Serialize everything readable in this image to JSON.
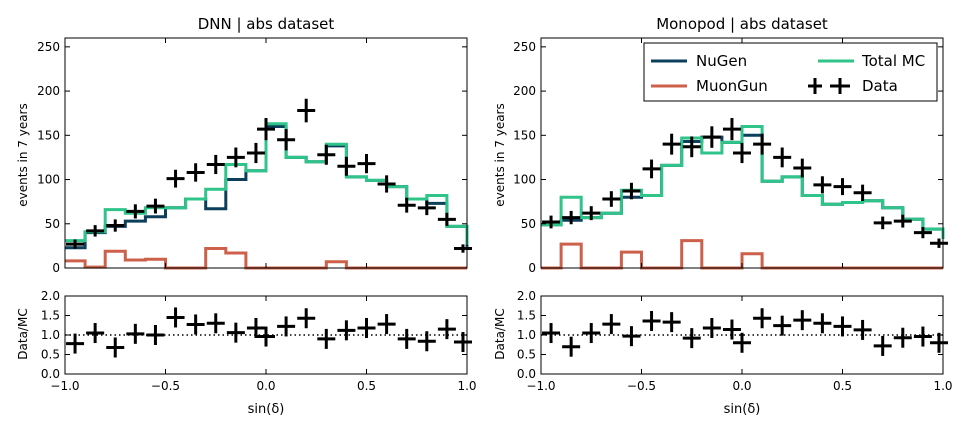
{
  "colors": {
    "nugen": "#0b3f5c",
    "muongun": "#cc604a",
    "total_mc": "#2fc489",
    "data": "#000000",
    "frame": "#000000"
  },
  "legend": {
    "nugen": "NuGen",
    "muongun": "MuonGun",
    "total_mc": "Total MC",
    "data": "Data"
  },
  "chart_data": [
    {
      "type": "line",
      "title": "DNN | abs dataset",
      "ylabel": "events in 7 years",
      "xlim": [
        -1.0,
        1.0
      ],
      "ylim": [
        0,
        260
      ],
      "yticks": [
        0,
        50,
        100,
        150,
        200,
        250
      ],
      "xticks": [
        -1.0,
        -0.5,
        0.0,
        0.5,
        1.0
      ],
      "ytick_labels": [
        "0",
        "50",
        "100",
        "150",
        "200",
        "250"
      ],
      "bin_edges": [
        -1.0,
        -0.9,
        -0.8,
        -0.7,
        -0.6,
        -0.5,
        -0.4,
        -0.3,
        -0.2,
        -0.1,
        0.0,
        0.1,
        0.2,
        0.3,
        0.4,
        0.5,
        0.6,
        0.7,
        0.8,
        0.9,
        1.0
      ],
      "series": [
        {
          "name": "NuGen",
          "values": [
            23,
            40,
            47,
            53,
            58,
            68,
            78,
            67,
            100,
            110,
            160,
            125,
            120,
            138,
            103,
            99,
            92,
            78,
            73,
            47,
            24
          ]
        },
        {
          "name": "MuonGun",
          "values": [
            8,
            1,
            19,
            9,
            10,
            0,
            0,
            22,
            17,
            0,
            0,
            0,
            0,
            7,
            0,
            0,
            0,
            0,
            0,
            0,
            0
          ]
        },
        {
          "name": "Total MC",
          "values": [
            31,
            41,
            66,
            62,
            68,
            68,
            78,
            89,
            117,
            110,
            163,
            125,
            120,
            140,
            103,
            99,
            92,
            78,
            82,
            47,
            26
          ]
        },
        {
          "name": "Data",
          "x": [
            -0.95,
            -0.85,
            -0.75,
            -0.65,
            -0.55,
            -0.45,
            -0.35,
            -0.25,
            -0.15,
            -0.05,
            0.0,
            0.1,
            0.2,
            0.3,
            0.4,
            0.5,
            0.6,
            0.7,
            0.8,
            0.9,
            0.98
          ],
          "values": [
            27,
            42,
            48,
            64,
            70,
            101,
            108,
            117,
            125,
            130,
            157,
            145,
            178,
            128,
            115,
            118,
            95,
            71,
            68,
            55,
            22
          ]
        }
      ],
      "ratio": {
        "ylabel": "Data/MC",
        "ylim": [
          0.0,
          2.0
        ],
        "yticks_labels": [
          "0.0",
          "0.5",
          "1.0",
          "1.5",
          "2.0"
        ],
        "x": [
          -0.95,
          -0.85,
          -0.75,
          -0.65,
          -0.55,
          -0.45,
          -0.35,
          -0.25,
          -0.15,
          -0.05,
          0.0,
          0.1,
          0.2,
          0.3,
          0.4,
          0.5,
          0.6,
          0.7,
          0.8,
          0.9,
          0.98
        ],
        "values": [
          0.78,
          1.05,
          0.68,
          1.03,
          1.0,
          1.45,
          1.27,
          1.3,
          1.06,
          1.18,
          0.96,
          1.22,
          1.43,
          0.9,
          1.12,
          1.18,
          1.28,
          0.9,
          0.84,
          1.15,
          0.82
        ]
      }
    },
    {
      "type": "line",
      "title": "Monopod | abs dataset",
      "ylabel": "events in 7 years",
      "xlim": [
        -1.0,
        1.0
      ],
      "ylim": [
        0,
        260
      ],
      "yticks": [
        0,
        50,
        100,
        150,
        200,
        250
      ],
      "xticks": [
        -1.0,
        -0.5,
        0.0,
        0.5,
        1.0
      ],
      "ytick_labels": [
        "0",
        "50",
        "100",
        "150",
        "200",
        "250"
      ],
      "bin_edges": [
        -1.0,
        -0.9,
        -0.8,
        -0.7,
        -0.6,
        -0.5,
        -0.4,
        -0.3,
        -0.2,
        -0.1,
        0.0,
        0.1,
        0.2,
        0.3,
        0.4,
        0.5,
        0.6,
        0.7,
        0.8,
        0.9,
        1.0
      ],
      "series": [
        {
          "name": "NuGen",
          "values": [
            49,
            54,
            57,
            62,
            80,
            82,
            116,
            143,
            148,
            142,
            150,
            98,
            103,
            82,
            72,
            74,
            76,
            68,
            55,
            44,
            33
          ]
        },
        {
          "name": "MuonGun",
          "values": [
            0,
            27,
            0,
            0,
            18,
            0,
            0,
            31,
            0,
            0,
            16,
            0,
            0,
            0,
            0,
            0,
            0,
            0,
            0,
            0,
            0
          ]
        },
        {
          "name": "Total MC",
          "values": [
            49,
            80,
            57,
            62,
            88,
            82,
            116,
            147,
            130,
            142,
            160,
            98,
            103,
            82,
            72,
            74,
            76,
            68,
            55,
            44,
            33
          ]
        },
        {
          "name": "Data",
          "x": [
            -0.95,
            -0.85,
            -0.75,
            -0.65,
            -0.55,
            -0.45,
            -0.35,
            -0.25,
            -0.15,
            -0.05,
            0.0,
            0.1,
            0.2,
            0.3,
            0.4,
            0.5,
            0.6,
            0.7,
            0.8,
            0.9,
            0.98
          ],
          "values": [
            52,
            57,
            62,
            78,
            87,
            112,
            140,
            137,
            148,
            157,
            130,
            140,
            125,
            113,
            94,
            92,
            85,
            51,
            53,
            40,
            28
          ]
        }
      ],
      "ratio": {
        "ylabel": "Data/MC",
        "ylim": [
          0.0,
          2.0
        ],
        "yticks_labels": [
          "0.0",
          "0.5",
          "1.0",
          "1.5",
          "2.0"
        ],
        "x": [
          -0.95,
          -0.85,
          -0.75,
          -0.65,
          -0.55,
          -0.45,
          -0.35,
          -0.25,
          -0.15,
          -0.05,
          0.0,
          0.1,
          0.2,
          0.3,
          0.4,
          0.5,
          0.6,
          0.7,
          0.8,
          0.9,
          0.98
        ],
        "values": [
          1.05,
          0.7,
          1.05,
          1.28,
          0.97,
          1.36,
          1.33,
          0.92,
          1.18,
          1.14,
          0.8,
          1.43,
          1.24,
          1.38,
          1.3,
          1.22,
          1.13,
          0.72,
          0.93,
          0.96,
          0.8
        ]
      }
    }
  ],
  "xlabel": "sin(δ)",
  "xtick_labels": [
    "−1.0",
    "−0.5",
    "0.0",
    "0.5",
    "1.0"
  ]
}
